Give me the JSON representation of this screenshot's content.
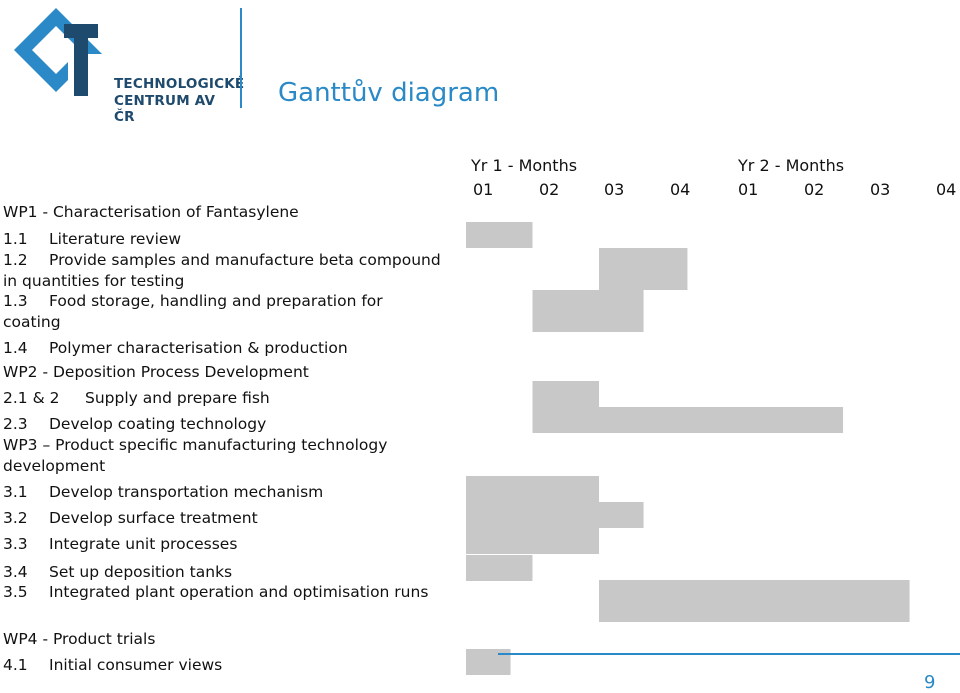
{
  "logo": {
    "line1": "TECHNOLOGICKÉ",
    "line2": "CENTRUM AV ČR"
  },
  "title": "Ganttův diagram",
  "page_number": "9",
  "colors": {
    "accent": "#2a89c6",
    "logo_dark": "#1e4a6d",
    "bar": "#c8c8c8"
  },
  "chart_data": {
    "type": "gantt",
    "period_headers": [
      "Yr 1 - Months",
      "Yr 2 - Months"
    ],
    "months": [
      "01",
      "02",
      "03",
      "04",
      "01",
      "02",
      "03",
      "04"
    ],
    "rows": [
      {
        "num": "",
        "label": "WP1 - Characterisation of Fantasylene",
        "start": null,
        "end": null
      },
      {
        "num": "1.1",
        "label": "Literature review",
        "start": 0,
        "end": 1
      },
      {
        "num": "1.2",
        "label": "Provide samples and manufacture beta compound in quantities for testing",
        "start": 2,
        "end": 3.33
      },
      {
        "num": "1.3",
        "label": "Food storage, handling and preparation for coating",
        "start": 1,
        "end": 2.67
      },
      {
        "num": "1.4",
        "label": "Polymer characterisation & production",
        "start": null,
        "end": null
      },
      {
        "num": "",
        "label": "WP2 - Deposition Process Development",
        "start": null,
        "end": null
      },
      {
        "num": "2.1 & 2",
        "label": "Supply and prepare fish",
        "start": 1,
        "end": 2
      },
      {
        "num": "2.3",
        "label": "Develop coating technology",
        "start": 1,
        "end": 5.67
      },
      {
        "num": "",
        "label": "WP3 – Product specific manufacturing technology development",
        "start": null,
        "end": null
      },
      {
        "num": "3.1",
        "label": "Develop transportation mechanism",
        "start": 0,
        "end": 2
      },
      {
        "num": "3.2",
        "label": "Develop surface treatment",
        "start": 0,
        "end": 2.67
      },
      {
        "num": "3.3",
        "label": "Integrate unit processes",
        "start": 0,
        "end": 2
      },
      {
        "num": "3.4",
        "label": "Set up deposition tanks",
        "start": 0,
        "end": 1
      },
      {
        "num": "3.5",
        "label": "Integrated plant operation and optimisation runs",
        "start": 2,
        "end": 6.67
      },
      {
        "num": "",
        "label": "WP4 - Product trials",
        "start": null,
        "end": null
      },
      {
        "num": "4.1",
        "label": "Initial consumer views",
        "start": 0,
        "end": 0.67
      }
    ]
  }
}
